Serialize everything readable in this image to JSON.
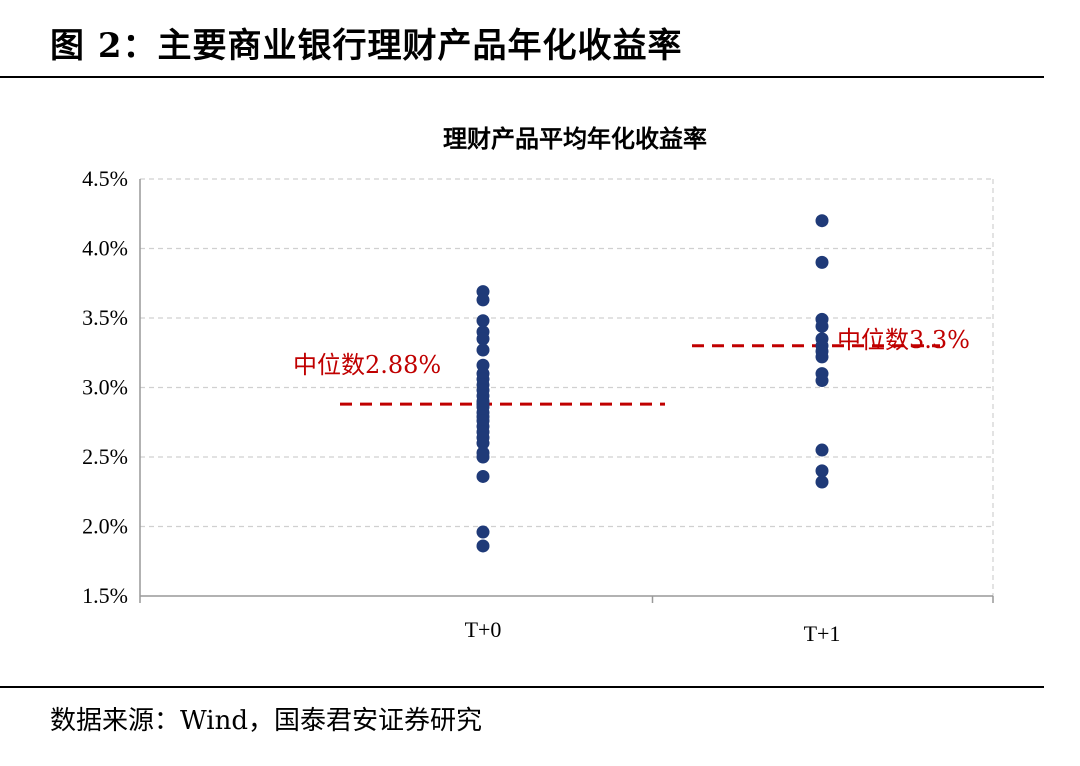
{
  "figure_title": "图 2：主要商业银行理财产品年化收益率",
  "source": "数据来源：Wind，国泰君安证券研究",
  "colors": {
    "point": "#1f3a78",
    "median": "#c00000",
    "grid": "#d0d0d0",
    "axis": "#999999"
  },
  "chart_data": {
    "type": "scatter",
    "title": "理财产品平均年化收益率",
    "categories": [
      "T+0",
      "T+1"
    ],
    "ylim": [
      1.5,
      4.5
    ],
    "yticks": [
      "1.5%",
      "2.0%",
      "2.5%",
      "3.0%",
      "3.5%",
      "4.0%",
      "4.5%"
    ],
    "grid": true,
    "series": [
      {
        "category": "T+0",
        "values": [
          3.69,
          3.63,
          3.48,
          3.4,
          3.35,
          3.27,
          3.16,
          3.1,
          3.06,
          3.02,
          2.98,
          2.94,
          2.9,
          2.88,
          2.86,
          2.82,
          2.79,
          2.76,
          2.72,
          2.68,
          2.64,
          2.6,
          2.53,
          2.5,
          2.36,
          1.96,
          1.86
        ]
      },
      {
        "category": "T+1",
        "values": [
          4.2,
          3.9,
          3.49,
          3.44,
          3.35,
          3.3,
          3.26,
          3.22,
          3.1,
          3.05,
          2.55,
          2.4,
          2.32
        ]
      }
    ],
    "medians": [
      {
        "category": "T+0",
        "value": 2.88,
        "label": "中位数2.88%"
      },
      {
        "category": "T+1",
        "value": 3.3,
        "label": "中位数3.3%"
      }
    ]
  }
}
